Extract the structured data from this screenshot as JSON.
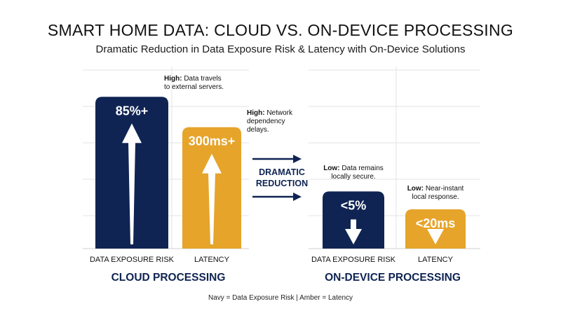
{
  "title": "SMART HOME DATA: CLOUD VS. ON-DEVICE PROCESSING",
  "subtitle": "Dramatic Reduction in Data Exposure Risk & Latency with On-Device Solutions",
  "footnote": "Navy = Data Exposure Risk | Amber = Latency",
  "middle_label": [
    "DRAMATIC",
    "REDUCTION"
  ],
  "colors": {
    "navy": "#0f2453",
    "amber": "#e6a42a",
    "grid": "#e3e3e3",
    "text": "#111111"
  },
  "chart_data": {
    "type": "bar",
    "groups": [
      {
        "name": "CLOUD PROCESSING",
        "bars": [
          {
            "category": "DATA EXPOSURE RISK",
            "value_label": "85%+",
            "level": 0.85,
            "direction": "up",
            "color": "navy",
            "annotation_bold": "High:",
            "annotation_lines": [
              "Data travels",
              "to external servers."
            ]
          },
          {
            "category": "LATENCY",
            "value_label": "300ms+",
            "level": 0.68,
            "direction": "up",
            "color": "amber",
            "annotation_bold": "High:",
            "annotation_lines": [
              "Network",
              "dependency",
              "delays."
            ]
          }
        ]
      },
      {
        "name": "ON-DEVICE PROCESSING",
        "bars": [
          {
            "category": "DATA EXPOSURE RISK",
            "value_label": "<5%",
            "level": 0.32,
            "direction": "down",
            "color": "navy",
            "annotation_bold": "Low:",
            "annotation_lines": [
              "Data remains",
              "locally secure."
            ]
          },
          {
            "category": "LATENCY",
            "value_label": "<20ms",
            "level": 0.22,
            "direction": "down",
            "color": "amber",
            "annotation_bold": "Low:",
            "annotation_lines": [
              "Near-instant",
              "local response."
            ]
          }
        ]
      }
    ]
  }
}
